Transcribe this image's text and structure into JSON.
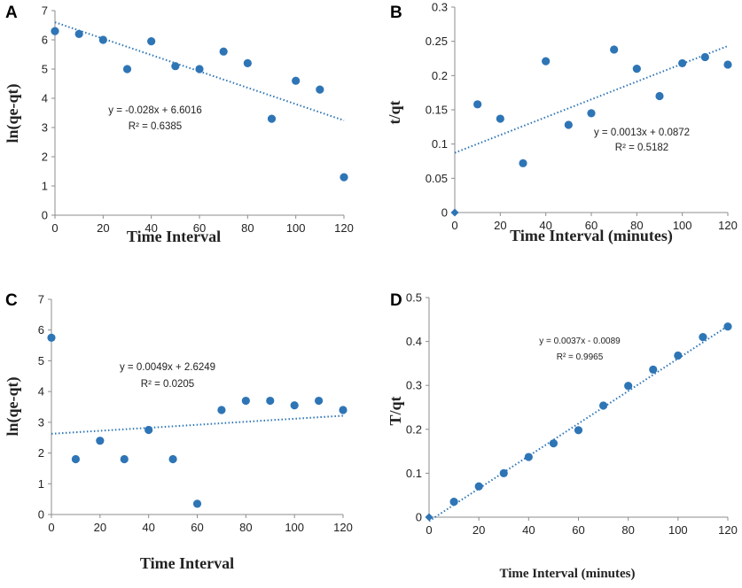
{
  "chart_data": [
    {
      "id": "A",
      "type": "scatter",
      "panel_label": "A",
      "xlabel": "Time Interval",
      "ylabel": "ln(qe-qt)",
      "xlim": [
        0,
        120
      ],
      "ylim": [
        0,
        7
      ],
      "xticks": [
        0,
        20,
        40,
        60,
        80,
        100,
        120
      ],
      "yticks": [
        0,
        1,
        2,
        3,
        4,
        5,
        6,
        7
      ],
      "points": [
        {
          "x": 0,
          "y": 6.3
        },
        {
          "x": 10,
          "y": 6.2
        },
        {
          "x": 20,
          "y": 6.0
        },
        {
          "x": 30,
          "y": 5.0
        },
        {
          "x": 40,
          "y": 5.95
        },
        {
          "x": 50,
          "y": 5.1
        },
        {
          "x": 60,
          "y": 5.0
        },
        {
          "x": 70,
          "y": 5.6
        },
        {
          "x": 80,
          "y": 5.2
        },
        {
          "x": 90,
          "y": 3.3
        },
        {
          "x": 100,
          "y": 4.6
        },
        {
          "x": 110,
          "y": 4.3
        },
        {
          "x": 120,
          "y": 1.3
        }
      ],
      "trendline": {
        "slope": -0.028,
        "intercept": 6.6016,
        "x_from": 0,
        "x_to": 120
      },
      "equation": "y = -0.028x + 6.6016",
      "r2": "R² = 0.6385",
      "marker_color": "#2e75b6",
      "trend_color": "#2e75b6"
    },
    {
      "id": "B",
      "type": "scatter",
      "panel_label": "B",
      "xlabel": "Time Interval (minutes)",
      "ylabel": "t/qt",
      "xlim": [
        0,
        120
      ],
      "ylim": [
        0,
        0.3
      ],
      "xticks": [
        0,
        20,
        40,
        60,
        80,
        100,
        120
      ],
      "yticks": [
        0,
        0.05,
        0.1,
        0.15,
        0.2,
        0.25,
        0.3
      ],
      "ytick_labels": [
        "0",
        "0.05",
        "0.1",
        "0.15",
        "0.2",
        "0.25",
        "0.3"
      ],
      "points": [
        {
          "x": 0,
          "y": 0,
          "marker": "diamond"
        },
        {
          "x": 10,
          "y": 0.158
        },
        {
          "x": 20,
          "y": 0.137
        },
        {
          "x": 30,
          "y": 0.072
        },
        {
          "x": 40,
          "y": 0.221
        },
        {
          "x": 50,
          "y": 0.128
        },
        {
          "x": 60,
          "y": 0.145
        },
        {
          "x": 70,
          "y": 0.238
        },
        {
          "x": 80,
          "y": 0.21
        },
        {
          "x": 90,
          "y": 0.17
        },
        {
          "x": 100,
          "y": 0.218
        },
        {
          "x": 110,
          "y": 0.227
        },
        {
          "x": 120,
          "y": 0.216
        }
      ],
      "trendline": {
        "slope": 0.0013,
        "intercept": 0.0872,
        "x_from": 0,
        "x_to": 120
      },
      "equation": "y = 0.0013x + 0.0872",
      "r2": "R² = 0.5182",
      "marker_color": "#2e75b6",
      "trend_color": "#2e75b6"
    },
    {
      "id": "C",
      "type": "scatter",
      "panel_label": "C",
      "xlabel": "Time Interval",
      "ylabel": "ln(qe-qt)",
      "xlim": [
        0,
        120
      ],
      "ylim": [
        0,
        7
      ],
      "xticks": [
        0,
        20,
        40,
        60,
        80,
        100,
        120
      ],
      "yticks": [
        0,
        1,
        2,
        3,
        4,
        5,
        6,
        7
      ],
      "points": [
        {
          "x": 0,
          "y": 5.75
        },
        {
          "x": 10,
          "y": 1.8
        },
        {
          "x": 20,
          "y": 2.4
        },
        {
          "x": 30,
          "y": 1.8
        },
        {
          "x": 40,
          "y": 2.75
        },
        {
          "x": 50,
          "y": 1.8
        },
        {
          "x": 60,
          "y": 0.35
        },
        {
          "x": 70,
          "y": 3.4
        },
        {
          "x": 80,
          "y": 3.7
        },
        {
          "x": 90,
          "y": 3.7
        },
        {
          "x": 100,
          "y": 3.55
        },
        {
          "x": 110,
          "y": 3.7
        },
        {
          "x": 120,
          "y": 3.4
        }
      ],
      "trendline": {
        "slope": 0.0049,
        "intercept": 2.6249,
        "x_from": 0,
        "x_to": 120
      },
      "equation": "y = 0.0049x + 2.6249",
      "r2": "R² = 0.0205",
      "marker_color": "#2e75b6",
      "trend_color": "#2e75b6"
    },
    {
      "id": "D",
      "type": "scatter",
      "panel_label": "D",
      "xlabel": "Time Interval (minutes)",
      "ylabel": "T/qt",
      "xlim": [
        0,
        120
      ],
      "ylim": [
        0,
        0.5
      ],
      "xticks": [
        0,
        20,
        40,
        60,
        80,
        100,
        120
      ],
      "yticks": [
        0,
        0.1,
        0.2,
        0.3,
        0.4,
        0.5
      ],
      "ytick_labels": [
        "0",
        "0.1",
        "0.2",
        "0.3",
        "0.4",
        "0.5"
      ],
      "points": [
        {
          "x": 0,
          "y": 0,
          "marker": "diamond"
        },
        {
          "x": 10,
          "y": 0.035
        },
        {
          "x": 20,
          "y": 0.07
        },
        {
          "x": 30,
          "y": 0.1
        },
        {
          "x": 40,
          "y": 0.137
        },
        {
          "x": 50,
          "y": 0.168
        },
        {
          "x": 60,
          "y": 0.198
        },
        {
          "x": 70,
          "y": 0.254
        },
        {
          "x": 80,
          "y": 0.299
        },
        {
          "x": 90,
          "y": 0.336
        },
        {
          "x": 100,
          "y": 0.368
        },
        {
          "x": 110,
          "y": 0.41
        },
        {
          "x": 120,
          "y": 0.434
        }
      ],
      "trendline": {
        "slope": 0.0037,
        "intercept": -0.0089,
        "x_from": 0,
        "x_to": 120
      },
      "equation": "y = 0.0037x - 0.0089",
      "r2": "R² = 0.9965",
      "marker_color": "#2e75b6",
      "trend_color": "#2e75b6"
    }
  ]
}
